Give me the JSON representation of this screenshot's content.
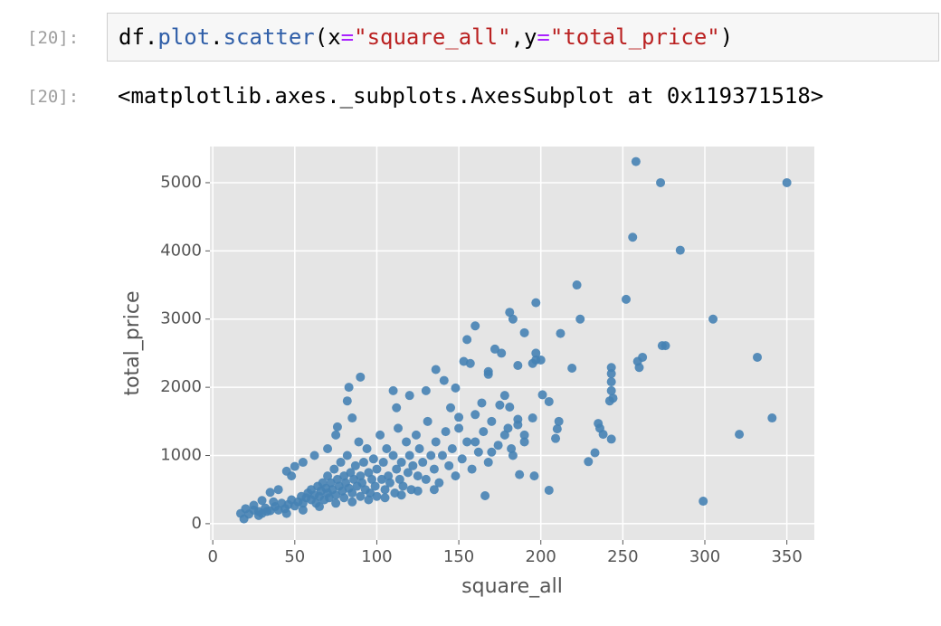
{
  "input_cell": {
    "prompt": "[20]:",
    "code_tokens": [
      {
        "text": "df.",
        "color": "#000000"
      },
      {
        "text": "plot",
        "color": "#2f5ea8"
      },
      {
        "text": ".",
        "color": "#000000"
      },
      {
        "text": "scatter",
        "color": "#2f5ea8"
      },
      {
        "text": "(x",
        "color": "#000000"
      },
      {
        "text": "=",
        "color": "#aa22ff"
      },
      {
        "text": "\"square_all\"",
        "color": "#ba2121"
      },
      {
        "text": ",y",
        "color": "#000000"
      },
      {
        "text": "=",
        "color": "#aa22ff"
      },
      {
        "text": "\"total_price\"",
        "color": "#ba2121"
      },
      {
        "text": ")",
        "color": "#000000"
      }
    ]
  },
  "output_cell": {
    "prompt": "[20]:",
    "text": "<matplotlib.axes._subplots.AxesSubplot at 0x119371518>"
  },
  "chart_data": {
    "type": "scatter",
    "x_label": "square_all",
    "y_label": "total_price",
    "color": "#4682b4",
    "grid": true,
    "xlim": [
      -1.75,
      366.75
    ],
    "ylim": [
      -240,
      5530
    ],
    "xticks": [
      0,
      50,
      100,
      150,
      200,
      250,
      300,
      350
    ],
    "yticks": [
      0,
      1000,
      2000,
      3000,
      4000,
      5000
    ],
    "x": [
      258,
      273,
      350,
      256,
      285,
      222,
      252,
      197,
      305,
      224,
      181,
      183,
      160,
      190,
      212,
      262,
      259,
      260,
      274,
      276,
      332,
      341,
      321,
      299,
      243,
      243,
      243,
      243,
      244,
      242,
      235,
      236,
      238,
      243,
      233,
      229,
      219,
      211,
      210,
      209,
      205,
      201,
      205,
      196,
      197,
      197,
      195,
      200,
      186,
      172,
      176,
      168,
      155,
      157,
      153,
      136,
      141,
      148,
      175,
      164,
      168,
      178,
      181,
      186,
      190,
      180,
      183,
      187,
      166,
      170,
      160,
      150,
      145,
      130,
      120,
      110,
      112,
      90,
      83,
      82,
      85,
      76,
      75,
      70,
      62,
      55,
      50,
      48,
      45,
      40,
      35,
      30,
      25,
      20,
      17,
      19,
      22,
      28,
      32,
      35,
      38,
      40,
      42,
      44,
      46,
      48,
      50,
      52,
      54,
      55,
      57,
      58,
      60,
      60,
      62,
      63,
      64,
      65,
      66,
      67,
      68,
      69,
      70,
      70,
      71,
      72,
      73,
      74,
      75,
      76,
      77,
      78,
      79,
      80,
      80,
      81,
      82,
      83,
      84,
      85,
      86,
      87,
      88,
      89,
      90,
      90,
      91,
      92,
      93,
      94,
      95,
      96,
      97,
      98,
      99,
      100,
      100,
      102,
      103,
      104,
      105,
      106,
      107,
      108,
      110,
      111,
      112,
      113,
      114,
      115,
      116,
      118,
      119,
      120,
      121,
      122,
      124,
      125,
      126,
      128,
      130,
      131,
      133,
      135,
      136,
      138,
      140,
      142,
      144,
      146,
      148,
      150,
      152,
      155,
      158,
      160,
      162,
      165,
      168,
      170,
      174,
      178,
      182,
      186,
      190,
      195,
      45,
      55,
      65,
      75,
      85,
      95,
      105,
      115,
      125,
      135,
      30,
      25,
      28,
      33,
      37
    ],
    "values": [
      5310,
      5000,
      5000,
      4200,
      4010,
      3500,
      3290,
      3240,
      3000,
      3000,
      3100,
      3000,
      2900,
      2800,
      2790,
      2440,
      2380,
      2290,
      2610,
      2610,
      2440,
      1550,
      1310,
      330,
      2290,
      2200,
      2080,
      1950,
      1840,
      1800,
      1470,
      1400,
      1310,
      1240,
      1040,
      910,
      2280,
      1500,
      1390,
      1250,
      1790,
      1890,
      490,
      700,
      2400,
      2500,
      2350,
      2400,
      2320,
      2560,
      2500,
      2230,
      2700,
      2350,
      2380,
      2260,
      2100,
      1990,
      1740,
      1770,
      2190,
      1880,
      1710,
      1530,
      1300,
      1400,
      1000,
      720,
      410,
      1050,
      1200,
      1560,
      1700,
      1950,
      1880,
      1950,
      1700,
      2150,
      2000,
      1800,
      1550,
      1420,
      1300,
      1100,
      1000,
      900,
      840,
      700,
      770,
      500,
      460,
      340,
      270,
      220,
      150,
      70,
      140,
      180,
      230,
      190,
      250,
      200,
      300,
      220,
      280,
      350,
      260,
      320,
      400,
      300,
      380,
      450,
      350,
      500,
      420,
      300,
      550,
      400,
      480,
      600,
      350,
      520,
      450,
      700,
      380,
      600,
      500,
      800,
      420,
      650,
      550,
      900,
      480,
      700,
      380,
      600,
      1000,
      520,
      750,
      450,
      650,
      850,
      550,
      1200,
      400,
      700,
      600,
      900,
      500,
      1100,
      750,
      450,
      650,
      950,
      550,
      800,
      400,
      1300,
      650,
      900,
      500,
      1100,
      700,
      600,
      1000,
      450,
      800,
      1400,
      650,
      900,
      550,
      1200,
      750,
      1000,
      500,
      850,
      1300,
      700,
      1100,
      900,
      650,
      1500,
      1000,
      800,
      1200,
      600,
      1000,
      1350,
      850,
      1100,
      700,
      1400,
      950,
      1200,
      800,
      1600,
      1050,
      1350,
      900,
      1500,
      1150,
      1300,
      1100,
      1450,
      1200,
      1550,
      150,
      200,
      250,
      300,
      320,
      350,
      380,
      420,
      480,
      500,
      150,
      200,
      120,
      180,
      320
    ]
  }
}
